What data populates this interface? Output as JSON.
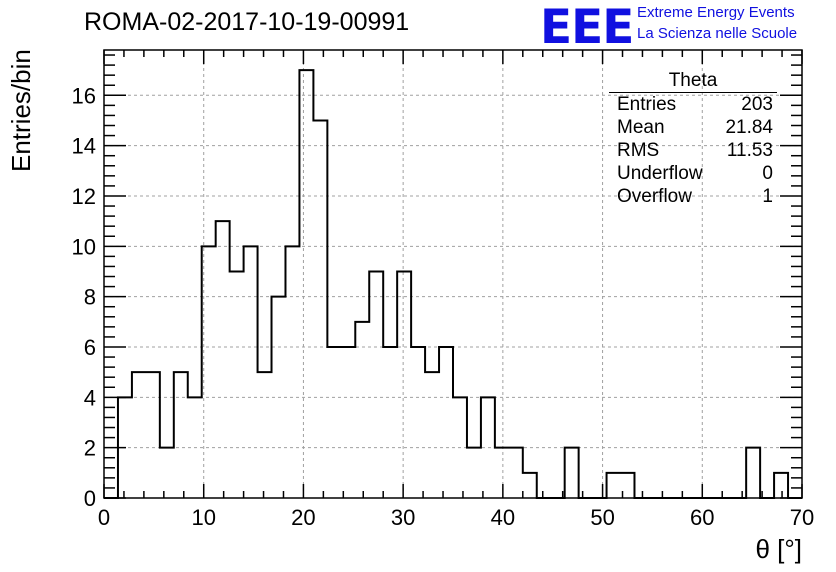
{
  "title": "ROMA-02-2017-10-19-00991",
  "logo": {
    "mark": "EEE",
    "line1": "Extreme Energy Events",
    "line2": "La Scienza nelle Scuole",
    "color": "#1010e0"
  },
  "stats_box": {
    "name": "Theta",
    "rows": [
      {
        "label": "Entries",
        "value": "203"
      },
      {
        "label": "Mean",
        "value": "21.84"
      },
      {
        "label": "RMS",
        "value": "11.53"
      },
      {
        "label": "Underflow",
        "value": "0"
      },
      {
        "label": "Overflow",
        "value": "1"
      }
    ]
  },
  "chart_data": {
    "type": "bar",
    "histogram": true,
    "xlabel": "θ [°]",
    "ylabel": "Entries/bin",
    "xlim": [
      0,
      70
    ],
    "ylim": [
      0,
      17.8
    ],
    "bin_width": 1.4,
    "x_ticks": [
      0,
      10,
      20,
      30,
      40,
      50,
      60,
      70
    ],
    "y_ticks": [
      0,
      2,
      4,
      6,
      8,
      10,
      12,
      14,
      16
    ],
    "grid": true,
    "values": [
      0,
      4,
      5,
      5,
      2,
      5,
      4,
      10,
      11,
      9,
      10,
      5,
      8,
      10,
      17,
      15,
      6,
      6,
      7,
      9,
      6,
      9,
      6,
      5,
      6,
      4,
      2,
      4,
      2,
      2,
      1,
      0,
      0,
      2,
      0,
      0,
      1,
      1,
      0,
      0,
      0,
      0,
      0,
      0,
      0,
      0,
      2,
      0,
      1,
      0
    ]
  }
}
